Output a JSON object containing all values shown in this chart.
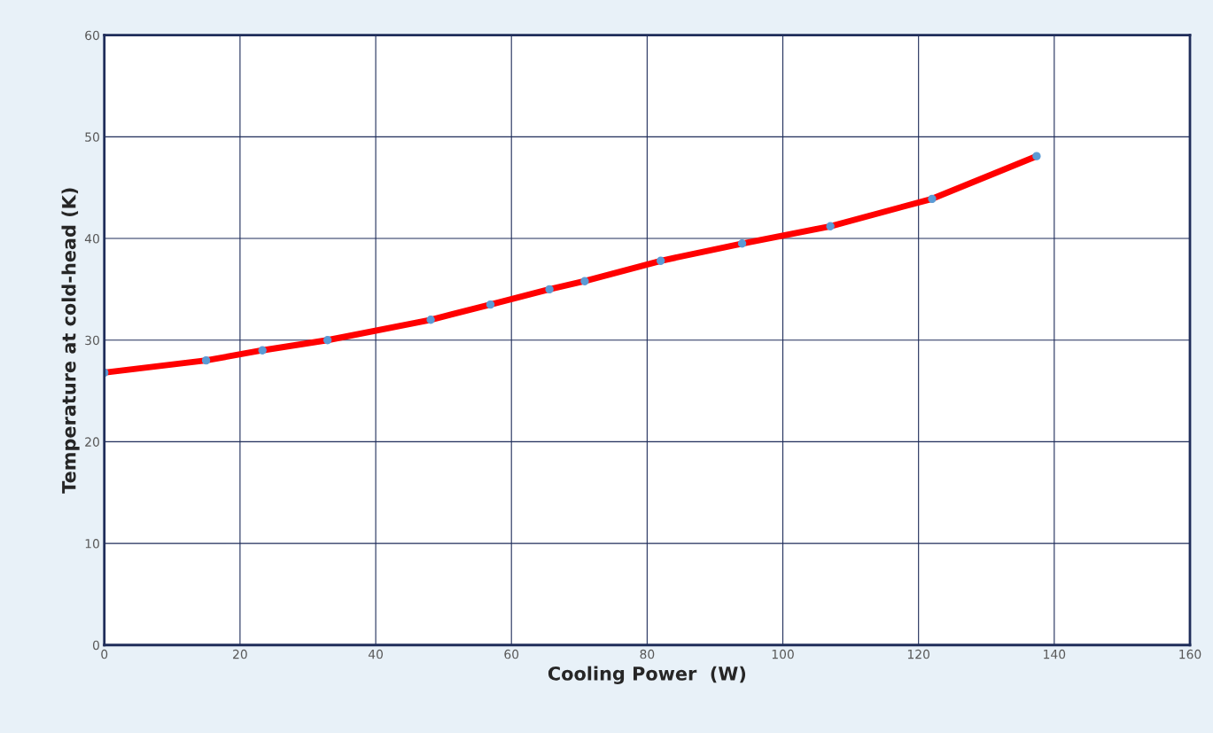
{
  "chart_data": {
    "type": "line",
    "xlabel": "Cooling Power  (W)",
    "ylabel": "Temperature at cold-head (K)",
    "x": [
      0,
      15,
      23.3,
      32.9,
      48.1,
      56.9,
      65.6,
      70.8,
      82,
      94,
      107,
      122,
      137.4
    ],
    "series": [
      {
        "color": "#ff0000",
        "values": [
          26.8,
          28.0,
          29.0,
          30.0,
          32.0,
          33.5,
          35.0,
          35.8,
          37.8,
          39.5,
          41.2,
          43.9,
          48.1
        ]
      }
    ],
    "xlim": [
      0,
      160
    ],
    "xticks": [
      0,
      20,
      40,
      60,
      80,
      100,
      120,
      140,
      160
    ],
    "ylim": [
      0,
      60
    ],
    "yticks": [
      0,
      10,
      20,
      30,
      40,
      50,
      60
    ],
    "grid": true,
    "marker": "circle",
    "line_style": "solid"
  }
}
